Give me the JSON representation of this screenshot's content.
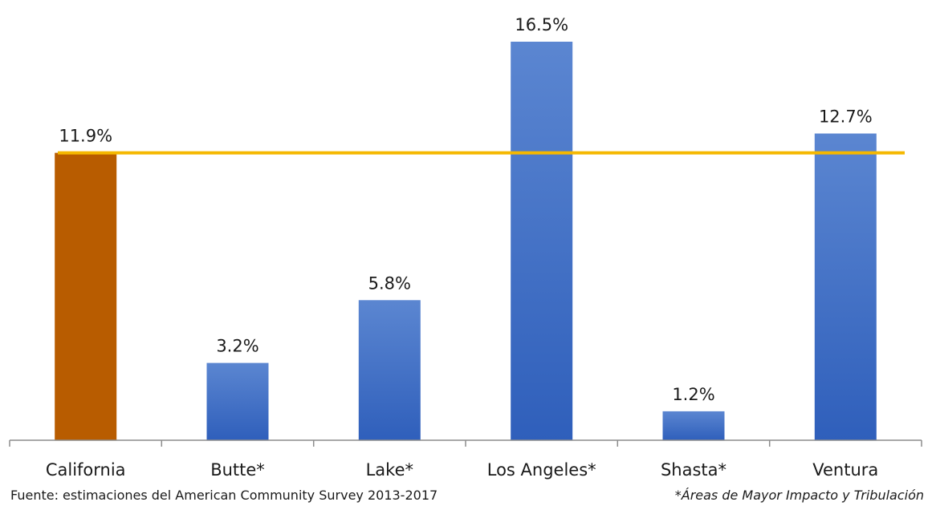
{
  "chart_data": {
    "type": "bar",
    "categories": [
      "California",
      "Butte*",
      "Lake*",
      "Los Angeles*",
      "Shasta*",
      "Ventura"
    ],
    "values": [
      11.9,
      3.2,
      5.8,
      16.5,
      1.2,
      12.7
    ],
    "value_labels": [
      "11.9%",
      "3.2%",
      "5.8%",
      "16.5%",
      "1.2%",
      "12.7%"
    ],
    "reference_line": {
      "value": 11.9,
      "color": "#f5b800"
    },
    "highlight_category": "California",
    "colors": {
      "highlight": "#b85c00",
      "default": "#4472c4"
    },
    "title": "",
    "xlabel": "",
    "ylabel": "",
    "ylim": [
      0,
      16.5
    ],
    "grid": false,
    "legend": "none"
  },
  "footnotes": {
    "source": "Fuente: estimaciones del American Community Survey 2013-2017",
    "asterisk": "*Áreas de Mayor Impacto y Tribulación"
  }
}
